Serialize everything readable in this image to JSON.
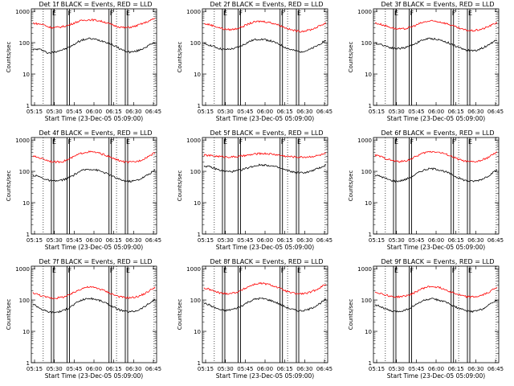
{
  "chart_data": [
    {
      "type": "line",
      "title": "Det 1f BLACK = Events, RED = LLD",
      "xlabel": "Start Time (23-Dec-05 05:09:00)",
      "ylabel": "Counts/sec",
      "xticks": [
        "05:15",
        "05:30",
        "05:45",
        "06:00",
        "06:15",
        "06:30",
        "06:45"
      ],
      "yticks": [
        "1",
        "10",
        "100",
        "1000"
      ],
      "ylim": [
        1,
        1200
      ],
      "yscale": "log",
      "markers": [
        "E",
        "F",
        "F",
        "E"
      ],
      "series": [
        {
          "color": "#000000",
          "values": [
            60,
            62,
            58,
            45,
            50,
            55,
            60,
            70,
            85,
            110,
            125,
            135,
            130,
            120,
            110,
            95,
            80,
            65,
            55,
            50,
            52,
            58,
            70,
            85,
            100
          ]
        },
        {
          "color": "#ff0000",
          "values": [
            420,
            400,
            380,
            320,
            300,
            310,
            330,
            360,
            420,
            480,
            520,
            540,
            530,
            500,
            460,
            400,
            350,
            320,
            300,
            310,
            330,
            380,
            430,
            500,
            600
          ]
        }
      ]
    },
    {
      "type": "line",
      "title": "Det 2f BLACK = Events, RED = LLD",
      "xlabel": "Start Time (23-Dec-05 05:09:00)",
      "ylabel": "Counts/sec",
      "xticks": [
        "05:15",
        "05:30",
        "05:45",
        "06:00",
        "06:15",
        "06:30",
        "06:45"
      ],
      "yticks": [
        "1",
        "10",
        "100",
        "1000"
      ],
      "ylim": [
        1,
        1200
      ],
      "yscale": "log",
      "markers": [
        "E",
        "F",
        "F",
        "E"
      ],
      "series": [
        {
          "color": "#000000",
          "values": [
            90,
            85,
            75,
            65,
            60,
            62,
            65,
            75,
            90,
            110,
            125,
            130,
            125,
            115,
            100,
            85,
            70,
            60,
            55,
            52,
            55,
            62,
            75,
            95,
            120
          ]
        },
        {
          "color": "#ff0000",
          "values": [
            400,
            380,
            340,
            300,
            270,
            260,
            270,
            300,
            350,
            410,
            460,
            480,
            470,
            440,
            400,
            350,
            300,
            260,
            240,
            230,
            240,
            260,
            300,
            360,
            430
          ]
        }
      ]
    },
    {
      "type": "line",
      "title": "Det 3f BLACK = Events, RED = LLD",
      "xlabel": "Start Time (23-Dec-05 05:09:00)",
      "ylabel": "Counts/sec",
      "xticks": [
        "05:15",
        "05:30",
        "05:45",
        "06:00",
        "06:15",
        "06:30",
        "06:45"
      ],
      "yticks": [
        "1",
        "10",
        "100",
        "1000"
      ],
      "ylim": [
        1,
        1200
      ],
      "yscale": "log",
      "markers": [
        "E",
        "F",
        "F",
        "E"
      ],
      "series": [
        {
          "color": "#000000",
          "values": [
            95,
            90,
            80,
            70,
            65,
            66,
            70,
            80,
            95,
            115,
            130,
            135,
            130,
            118,
            105,
            90,
            75,
            65,
            58,
            55,
            58,
            66,
            80,
            100,
            125
          ]
        },
        {
          "color": "#ff0000",
          "values": [
            420,
            390,
            350,
            310,
            280,
            270,
            280,
            310,
            360,
            420,
            470,
            490,
            480,
            450,
            410,
            360,
            310,
            270,
            250,
            240,
            250,
            270,
            310,
            370,
            440
          ]
        }
      ]
    },
    {
      "type": "line",
      "title": "Det 4f BLACK = Events, RED = LLD",
      "xlabel": "Start Time (23-Dec-05 05:09:00)",
      "ylabel": "Counts/sec",
      "xticks": [
        "05:15",
        "05:30",
        "05:45",
        "06:00",
        "06:15",
        "06:30",
        "06:45"
      ],
      "yticks": [
        "1",
        "10",
        "100",
        "1000"
      ],
      "ylim": [
        1,
        1200
      ],
      "yscale": "log",
      "markers": [
        "E",
        "F",
        "F",
        "E"
      ],
      "series": [
        {
          "color": "#000000",
          "values": [
            75,
            70,
            60,
            52,
            48,
            50,
            54,
            62,
            75,
            95,
            110,
            118,
            115,
            105,
            92,
            78,
            65,
            55,
            50,
            48,
            50,
            56,
            68,
            85,
            110
          ]
        },
        {
          "color": "#ff0000",
          "values": [
            300,
            280,
            250,
            220,
            200,
            200,
            210,
            240,
            290,
            350,
            400,
            420,
            410,
            380,
            340,
            290,
            250,
            220,
            200,
            195,
            200,
            220,
            260,
            320,
            390
          ]
        }
      ]
    },
    {
      "type": "line",
      "title": "Det 5f BLACK = Events, RED = LLD",
      "xlabel": "Start Time (23-Dec-05 05:09:00)",
      "ylabel": "Counts/sec",
      "xticks": [
        "05:15",
        "05:30",
        "05:45",
        "06:00",
        "06:15",
        "06:30",
        "06:45"
      ],
      "yticks": [
        "1",
        "10",
        "100",
        "1000"
      ],
      "ylim": [
        1,
        1200
      ],
      "yscale": "log",
      "markers": [
        "E",
        "F",
        "F",
        "E"
      ],
      "series": [
        {
          "color": "#000000",
          "values": [
            150,
            140,
            125,
            110,
            100,
            98,
            100,
            108,
            120,
            135,
            150,
            160,
            160,
            152,
            140,
            125,
            110,
            100,
            92,
            90,
            92,
            100,
            115,
            135,
            160
          ]
        },
        {
          "color": "#ff0000",
          "values": [
            330,
            320,
            310,
            300,
            290,
            288,
            290,
            300,
            315,
            335,
            355,
            370,
            370,
            360,
            345,
            325,
            305,
            295,
            288,
            285,
            288,
            295,
            310,
            335,
            370
          ]
        }
      ]
    },
    {
      "type": "line",
      "title": "Det 6f BLACK = Events, RED = LLD",
      "xlabel": "Start Time (23-Dec-05 05:09:00)",
      "ylabel": "Counts/sec",
      "xticks": [
        "05:15",
        "05:30",
        "05:45",
        "06:00",
        "06:15",
        "06:30",
        "06:45"
      ],
      "yticks": [
        "1",
        "10",
        "100",
        "1000"
      ],
      "ylim": [
        1,
        1200
      ],
      "yscale": "log",
      "markers": [
        "E",
        "F",
        "F",
        "E"
      ],
      "series": [
        {
          "color": "#000000",
          "values": [
            75,
            70,
            60,
            52,
            48,
            50,
            55,
            65,
            80,
            100,
            115,
            122,
            118,
            108,
            95,
            80,
            66,
            56,
            50,
            48,
            50,
            56,
            68,
            86,
            110
          ]
        },
        {
          "color": "#ff0000",
          "values": [
            330,
            300,
            260,
            230,
            210,
            205,
            215,
            245,
            295,
            355,
            405,
            430,
            420,
            390,
            350,
            300,
            255,
            225,
            205,
            200,
            205,
            225,
            265,
            330,
            400
          ]
        }
      ]
    },
    {
      "type": "line",
      "title": "Det 7f BLACK = Events, RED = LLD",
      "xlabel": "Start Time (23-Dec-05 05:09:00)",
      "ylabel": "Counts/sec",
      "xticks": [
        "05:15",
        "05:30",
        "05:45",
        "06:00",
        "06:15",
        "06:30",
        "06:45"
      ],
      "yticks": [
        "1",
        "10",
        "100",
        "1000"
      ],
      "ylim": [
        1,
        1200
      ],
      "yscale": "log",
      "markers": [
        "E",
        "F",
        "F",
        "E"
      ],
      "series": [
        {
          "color": "#000000",
          "values": [
            75,
            60,
            48,
            42,
            40,
            42,
            46,
            55,
            70,
            90,
            105,
            112,
            108,
            98,
            85,
            70,
            58,
            48,
            44,
            42,
            44,
            50,
            62,
            80,
            105
          ]
        },
        {
          "color": "#ff0000",
          "values": [
            170,
            150,
            130,
            120,
            115,
            118,
            125,
            140,
            170,
            210,
            245,
            260,
            250,
            230,
            200,
            170,
            145,
            128,
            120,
            118,
            122,
            135,
            160,
            200,
            260
          ]
        }
      ]
    },
    {
      "type": "line",
      "title": "Det 8f BLACK = Events, RED = LLD",
      "xlabel": "Start Time (23-Dec-05 05:09:00)",
      "ylabel": "Counts/sec",
      "xticks": [
        "05:15",
        "05:30",
        "05:45",
        "06:00",
        "06:15",
        "06:30",
        "06:45"
      ],
      "yticks": [
        "1",
        "10",
        "100",
        "1000"
      ],
      "ylim": [
        1,
        1200
      ],
      "yscale": "log",
      "markers": [
        "E",
        "F",
        "F",
        "E"
      ],
      "series": [
        {
          "color": "#000000",
          "values": [
            80,
            70,
            58,
            50,
            46,
            48,
            52,
            60,
            74,
            92,
            106,
            112,
            108,
            98,
            86,
            72,
            60,
            52,
            47,
            45,
            47,
            53,
            65,
            82,
            105
          ]
        },
        {
          "color": "#ff0000",
          "values": [
            240,
            220,
            190,
            170,
            160,
            162,
            170,
            190,
            230,
            280,
            320,
            340,
            330,
            305,
            270,
            230,
            195,
            172,
            160,
            158,
            162,
            178,
            210,
            260,
            320
          ]
        }
      ]
    },
    {
      "type": "line",
      "title": "Det 9f BLACK = Events, RED = LLD",
      "xlabel": "Start Time (23-Dec-05 05:09:00)",
      "ylabel": "Counts/sec",
      "xticks": [
        "05:15",
        "05:30",
        "05:45",
        "06:00",
        "06:15",
        "06:30",
        "06:45"
      ],
      "yticks": [
        "1",
        "10",
        "100",
        "1000"
      ],
      "ylim": [
        1,
        1200
      ],
      "yscale": "log",
      "markers": [
        "E",
        "F",
        "F",
        "E"
      ],
      "series": [
        {
          "color": "#000000",
          "values": [
            72,
            62,
            52,
            45,
            42,
            44,
            48,
            56,
            70,
            88,
            102,
            108,
            104,
            95,
            83,
            70,
            58,
            50,
            45,
            43,
            45,
            51,
            63,
            80,
            102
          ]
        },
        {
          "color": "#ff0000",
          "values": [
            180,
            165,
            145,
            132,
            125,
            128,
            135,
            150,
            180,
            220,
            255,
            270,
            262,
            240,
            210,
            180,
            155,
            138,
            128,
            125,
            128,
            140,
            165,
            205,
            260
          ]
        }
      ]
    }
  ]
}
